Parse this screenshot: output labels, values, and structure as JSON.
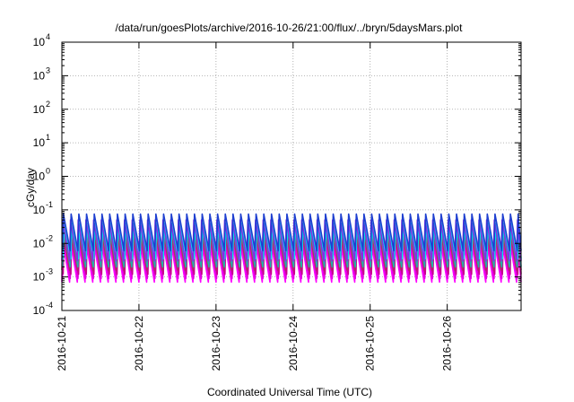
{
  "chart_data": {
    "type": "line",
    "title": "/data/run/goesPlots/archive/2016-10-26/21:00/flux/../bryn/5daysMars.plot",
    "xlabel": "Coordinated Universal Time (UTC)",
    "ylabel": "cGy/day",
    "yscale": "log",
    "ylim": [
      0.0001,
      10000
    ],
    "xlim": [
      "2016-10-21",
      "2016-10-26T23:00"
    ],
    "x_ticks": [
      "2016-10-21",
      "2016-10-22",
      "2016-10-23",
      "2016-10-24",
      "2016-10-25",
      "2016-10-26"
    ],
    "y_ticks": [
      {
        "base": "10",
        "exp": "-4"
      },
      {
        "base": "10",
        "exp": "-3"
      },
      {
        "base": "10",
        "exp": "-2"
      },
      {
        "base": "10",
        "exp": "-1"
      },
      {
        "base": "10",
        "exp": "0"
      },
      {
        "base": "10",
        "exp": "1"
      },
      {
        "base": "10",
        "exp": "2"
      },
      {
        "base": "10",
        "exp": "3"
      },
      {
        "base": "10",
        "exp": "4"
      }
    ],
    "grid": true,
    "legend": false,
    "sawtooth_period_hours": 2.4,
    "series": [
      {
        "color": "#ff00ff",
        "peak": 0.012,
        "trough": 0.0007
      },
      {
        "color": "#e000e0",
        "peak": 0.014,
        "trough": 0.0009
      },
      {
        "color": "#c8008c",
        "peak": 0.02,
        "trough": 0.0012
      },
      {
        "color": "#b03060",
        "peak": 0.025,
        "trough": 0.0016
      },
      {
        "color": "#20b2aa",
        "peak": 0.03,
        "trough": 0.002
      },
      {
        "color": "#00e5ee",
        "peak": 0.04,
        "trough": 0.0035
      },
      {
        "color": "#8a2be2",
        "peak": 0.05,
        "trough": 0.003
      },
      {
        "color": "#1e3fd0",
        "peak": 0.075,
        "trough": 0.006
      }
    ]
  }
}
